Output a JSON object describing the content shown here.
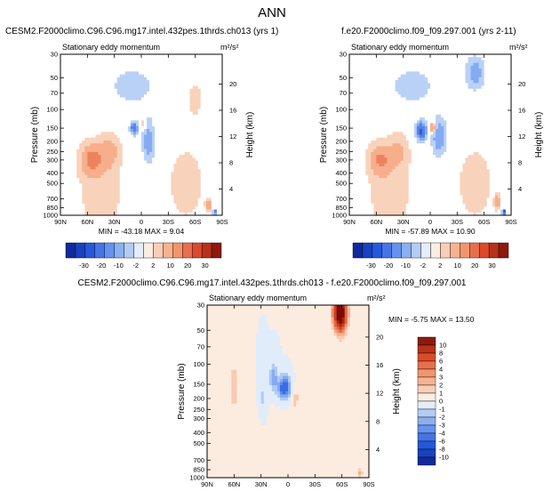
{
  "figure": {
    "title": "ANN",
    "colors": {
      "blue_dark": "#0b1f8c",
      "blue_light": "#c9dcf7",
      "white": "#ffffff",
      "red_light": "#fadcc8",
      "red_dark": "#7a0e06"
    }
  },
  "chart_data": [
    {
      "type": "heatmap",
      "id": "p1",
      "title": "CESM2.F2000climo.C96.C96.mg17.intel.432pes.1thrds.ch013 (yrs 1)",
      "subtitle": "Stationary eddy momentum",
      "units": "m²/s²",
      "xlabel": "",
      "ylabel": "Pressure (mb)",
      "ylabel_right": "Height (km)",
      "x_ticks": [
        "90N",
        "60N",
        "30N",
        "0",
        "30S",
        "60S",
        "90S"
      ],
      "y_ticks": [
        "30",
        "50",
        "70",
        "100",
        "150",
        "200",
        "250",
        "300",
        "400",
        "500",
        "700",
        "850",
        "1000"
      ],
      "height_ticks": [
        "20",
        "16",
        "12",
        "8",
        "4"
      ],
      "xlim": [
        90,
        -90
      ],
      "ylim": [
        1000,
        30
      ],
      "stats": "MIN = -43.18  MAX =  9.04",
      "min": -43.18,
      "max": 9.04,
      "features": [
        {
          "lat": 55,
          "p": 300,
          "value": 7,
          "wlat": 12,
          "wp": 0.32
        },
        {
          "lat": 35,
          "p": 250,
          "value": 4,
          "wlat": 10,
          "wp": 0.35
        },
        {
          "lat": 8,
          "p": 150,
          "value": -9,
          "wlat": 4,
          "wp": 0.12
        },
        {
          "lat": -3,
          "p": 140,
          "value": 3,
          "wlat": 3,
          "wp": 0.12
        },
        {
          "lat": -8,
          "p": 200,
          "value": -5,
          "wlat": 6,
          "wp": 0.4
        },
        {
          "lat": -50,
          "p": 500,
          "value": 2,
          "wlat": 20,
          "wp": 0.8
        },
        {
          "lat": -75,
          "p": 800,
          "value": 7,
          "wlat": 3,
          "wp": 0.12
        },
        {
          "lat": -82,
          "p": 930,
          "value": -12,
          "wlat": 2,
          "wp": 0.05
        },
        {
          "lat": 45,
          "p": 600,
          "value": 2,
          "wlat": 25,
          "wp": 1.0
        },
        {
          "lat": 10,
          "p": 60,
          "value": -1.5,
          "wlat": 30,
          "wp": 0.5
        },
        {
          "lat": -60,
          "p": 80,
          "value": 1.5,
          "wlat": 10,
          "wp": 0.5
        }
      ],
      "colorbar": {
        "orientation": "horizontal",
        "labels": [
          "-30",
          "-20",
          "-10",
          "-2",
          "2",
          "10",
          "20",
          "30"
        ]
      }
    },
    {
      "type": "heatmap",
      "id": "p2",
      "title": "f.e20.F2000climo.f09_f09.297.001 (yrs 2-11)",
      "subtitle": "Stationary eddy momentum",
      "units": "m²/s²",
      "xlabel": "",
      "ylabel": "Pressure (mb)",
      "ylabel_right": "Height (km)",
      "x_ticks": [
        "90N",
        "60N",
        "30N",
        "0",
        "30S",
        "60S",
        "90S"
      ],
      "y_ticks": [
        "30",
        "50",
        "70",
        "100",
        "150",
        "200",
        "250",
        "300",
        "400",
        "500",
        "700",
        "850",
        "1000"
      ],
      "height_ticks": [
        "20",
        "16",
        "12",
        "8",
        "4"
      ],
      "xlim": [
        90,
        -90
      ],
      "ylim": [
        1000,
        30
      ],
      "stats": "MIN = -57.89  MAX = 10.90",
      "min": -57.89,
      "max": 10.9,
      "features": [
        {
          "lat": 55,
          "p": 300,
          "value": 6,
          "wlat": 12,
          "wp": 0.32
        },
        {
          "lat": 35,
          "p": 250,
          "value": 3,
          "wlat": 10,
          "wp": 0.35
        },
        {
          "lat": 10,
          "p": 160,
          "value": -12,
          "wlat": 5,
          "wp": 0.18
        },
        {
          "lat": -3,
          "p": 150,
          "value": 9,
          "wlat": 3,
          "wp": 0.1
        },
        {
          "lat": -10,
          "p": 180,
          "value": -6,
          "wlat": 7,
          "wp": 0.35
        },
        {
          "lat": -50,
          "p": 45,
          "value": -5,
          "wlat": 9,
          "wp": 0.3
        },
        {
          "lat": -50,
          "p": 500,
          "value": 2,
          "wlat": 20,
          "wp": 0.8
        },
        {
          "lat": -75,
          "p": 750,
          "value": 7,
          "wlat": 3,
          "wp": 0.14
        },
        {
          "lat": -82,
          "p": 930,
          "value": -14,
          "wlat": 2,
          "wp": 0.05
        },
        {
          "lat": 45,
          "p": 600,
          "value": 2,
          "wlat": 25,
          "wp": 1.0
        },
        {
          "lat": 20,
          "p": 60,
          "value": -1.5,
          "wlat": 30,
          "wp": 0.5
        }
      ],
      "colorbar": {
        "orientation": "horizontal",
        "labels": [
          "-30",
          "-20",
          "-10",
          "-2",
          "2",
          "10",
          "20",
          "30"
        ]
      }
    },
    {
      "type": "heatmap",
      "id": "p3",
      "title": "CESM2.F2000climo.C96.C96.mg17.intel.432pes.1thrds.ch013 - f.e20.F2000climo.f09_f09.297.001",
      "subtitle": "Stationary eddy momentum",
      "units": "m²/s²",
      "xlabel": "",
      "ylabel": "Pressure (mb)",
      "ylabel_right": "Height (km)",
      "x_ticks": [
        "90N",
        "60N",
        "30N",
        "0",
        "30S",
        "60S",
        "90S"
      ],
      "y_ticks": [
        "30",
        "50",
        "70",
        "100",
        "150",
        "200",
        "250",
        "300",
        "400",
        "500",
        "700",
        "850",
        "1000"
      ],
      "height_ticks": [
        "20",
        "16",
        "12",
        "8",
        "4"
      ],
      "xlim": [
        90,
        -90
      ],
      "ylim": [
        1000,
        30
      ],
      "stats": "MIN =  -5.75  MAX =  13.50",
      "min": -5.75,
      "max": 13.5,
      "features": [
        {
          "lat": -58,
          "p": 35,
          "value": 14,
          "wlat": 7,
          "wp": 0.35
        },
        {
          "lat": 4,
          "p": 160,
          "value": -5.5,
          "wlat": 7,
          "wp": 0.22
        },
        {
          "lat": 16,
          "p": 130,
          "value": -2.5,
          "wlat": 4,
          "wp": 0.3
        },
        {
          "lat": -8,
          "p": 200,
          "value": 1.5,
          "wlat": 4,
          "wp": 0.25
        },
        {
          "lat": 60,
          "p": 150,
          "value": 1.2,
          "wlat": 6,
          "wp": 0.8
        },
        {
          "lat": 28,
          "p": 200,
          "value": -1.2,
          "wlat": 5,
          "wp": 0.5
        },
        {
          "lat": -20,
          "p": 120,
          "value": 0.6,
          "wlat": 8,
          "wp": 0.5
        },
        {
          "lat": -80,
          "p": 900,
          "value": 2.5,
          "wlat": 3,
          "wp": 0.1
        },
        {
          "lat": 40,
          "p": 500,
          "value": 0.5,
          "wlat": 30,
          "wp": 0.8
        }
      ],
      "colorbar": {
        "orientation": "vertical",
        "labels": [
          "10",
          "8",
          "6",
          "4",
          "3",
          "2",
          "1",
          "0",
          "-1",
          "-2",
          "-3",
          "-4",
          "-6",
          "-8",
          "-10"
        ]
      }
    }
  ]
}
